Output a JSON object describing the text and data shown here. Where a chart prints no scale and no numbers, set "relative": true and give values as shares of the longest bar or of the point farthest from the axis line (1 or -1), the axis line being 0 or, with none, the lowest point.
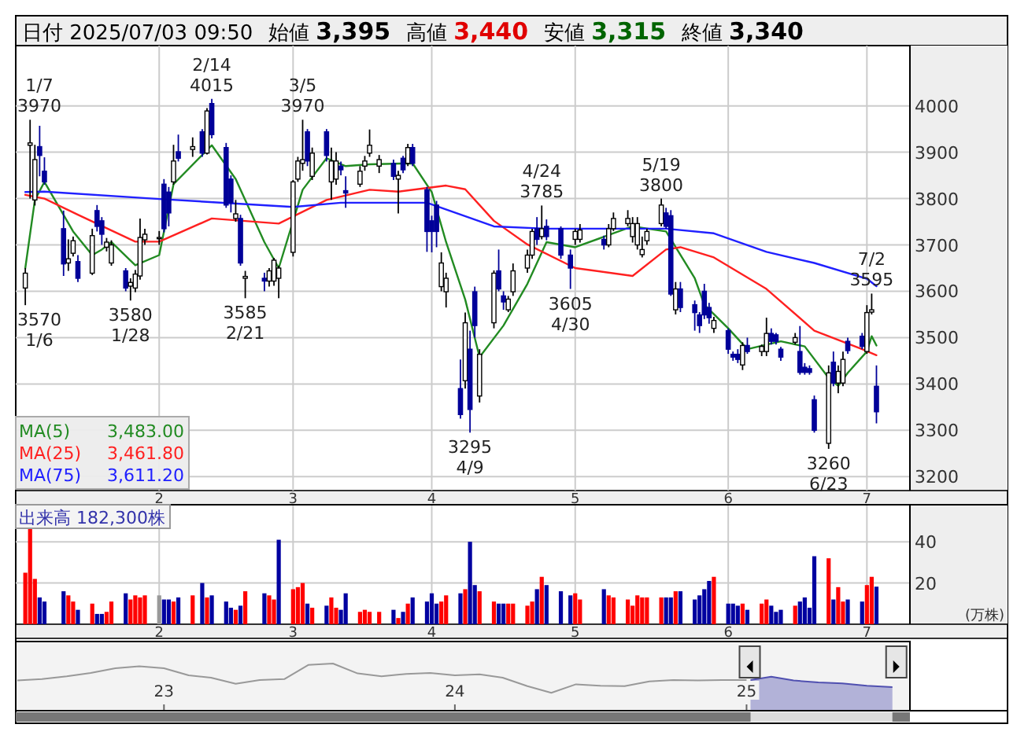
{
  "chart_data": [
    {
      "type": "other",
      "annotations": [
        "日付 2025/07/03 09:50",
        "始値 3,395",
        "高値 3,440",
        "安値 3,315",
        "終値 3,340"
      ]
    },
    {
      "type": "candlestick",
      "x": [
        "2025-01-06",
        "2025-01-07",
        "2025-01-08",
        "2025-01-09",
        "2025-01-10",
        "2025-01-14",
        "2025-01-15",
        "2025-01-16",
        "2025-01-17",
        "2025-01-20",
        "2025-01-21",
        "2025-01-22",
        "2025-01-23",
        "2025-01-24",
        "2025-01-27",
        "2025-01-28",
        "2025-01-29",
        "2025-01-30",
        "2025-01-31",
        "2025-02-03",
        "2025-02-04",
        "2025-02-05",
        "2025-02-06",
        "2025-02-07",
        "2025-02-10",
        "2025-02-12",
        "2025-02-13",
        "2025-02-14",
        "2025-02-17",
        "2025-02-18",
        "2025-02-19",
        "2025-02-20",
        "2025-02-21",
        "2025-02-25",
        "2025-02-26",
        "2025-02-27",
        "2025-02-28",
        "2025-03-03",
        "2025-03-04",
        "2025-03-05",
        "2025-03-06",
        "2025-03-07",
        "2025-03-10",
        "2025-03-11",
        "2025-03-12",
        "2025-03-13",
        "2025-03-14",
        "2025-03-17",
        "2025-03-18",
        "2025-03-19",
        "2025-03-21",
        "2025-03-24",
        "2025-03-25",
        "2025-03-26",
        "2025-03-27",
        "2025-03-28",
        "2025-03-31",
        "2025-04-01",
        "2025-04-02",
        "2025-04-03",
        "2025-04-04",
        "2025-04-07",
        "2025-04-08",
        "2025-04-09",
        "2025-04-10",
        "2025-04-11",
        "2025-04-14",
        "2025-04-15",
        "2025-04-16",
        "2025-04-17",
        "2025-04-18",
        "2025-04-21",
        "2025-04-22",
        "2025-04-23",
        "2025-04-24",
        "2025-04-25",
        "2025-04-28",
        "2025-04-30",
        "2025-05-01",
        "2025-05-02",
        "2025-05-07",
        "2025-05-08",
        "2025-05-09",
        "2025-05-12",
        "2025-05-13",
        "2025-05-14",
        "2025-05-15",
        "2025-05-16",
        "2025-05-19",
        "2025-05-20",
        "2025-05-21",
        "2025-05-22",
        "2025-05-23",
        "2025-05-26",
        "2025-05-27",
        "2025-05-28",
        "2025-05-29",
        "2025-05-30",
        "2025-06-02",
        "2025-06-03",
        "2025-06-04",
        "2025-06-05",
        "2025-06-06",
        "2025-06-09",
        "2025-06-10",
        "2025-06-11",
        "2025-06-12",
        "2025-06-13",
        "2025-06-16",
        "2025-06-17",
        "2025-06-18",
        "2025-06-19",
        "2025-06-20",
        "2025-06-23",
        "2025-06-24",
        "2025-06-25",
        "2025-06-26",
        "2025-06-27",
        "2025-06-30",
        "2025-07-01",
        "2025-07-02",
        "2025-07-03"
      ],
      "ohlc": [
        [
          3607,
          3650,
          3570,
          3639
        ],
        [
          3915,
          3970,
          3800,
          3920
        ],
        [
          3797,
          3916,
          3785,
          3884
        ],
        [
          3912,
          3957,
          3848,
          3893
        ],
        [
          3859,
          3889,
          3830,
          3836
        ],
        [
          3735,
          3774,
          3633,
          3659
        ],
        [
          3661,
          3712,
          3644,
          3670
        ],
        [
          3682,
          3718,
          3675,
          3709
        ],
        [
          3664,
          3678,
          3620,
          3628
        ],
        [
          3639,
          3735,
          3635,
          3720
        ],
        [
          3774,
          3786,
          3729,
          3740
        ],
        [
          3752,
          3760,
          3700,
          3723
        ],
        [
          3695,
          3715,
          3686,
          3706
        ],
        [
          3661,
          3710,
          3655,
          3700
        ],
        [
          3644,
          3650,
          3600,
          3607
        ],
        [
          3611,
          3628,
          3580,
          3619
        ],
        [
          3607,
          3646,
          3598,
          3637
        ],
        [
          3633,
          3757,
          3625,
          3716
        ],
        [
          3711,
          3735,
          3700,
          3723
        ],
        [
          3716,
          3730,
          3700,
          3716
        ],
        [
          3831,
          3842,
          3727,
          3735
        ],
        [
          3814,
          3825,
          3740,
          3769
        ],
        [
          3836,
          3916,
          3830,
          3881
        ],
        [
          3901,
          3938,
          3880,
          3887
        ],
        [
          3906,
          3932,
          3890,
          3912
        ],
        [
          3944,
          3950,
          3890,
          3898
        ],
        [
          3898,
          3995,
          3895,
          3989
        ],
        [
          4005,
          4015,
          3930,
          3938
        ],
        [
          3910,
          3920,
          3780,
          3786
        ],
        [
          3842,
          3850,
          3770,
          3791
        ],
        [
          3757,
          3797,
          3750,
          3767
        ],
        [
          3757,
          3765,
          3655,
          3661
        ],
        [
          3628,
          3644,
          3585,
          3632
        ],
        [
          3628,
          3640,
          3600,
          3622
        ],
        [
          3622,
          3650,
          3610,
          3644
        ],
        [
          3622,
          3672,
          3612,
          3667
        ],
        [
          3628,
          3655,
          3585,
          3650
        ],
        [
          3684,
          3840,
          3675,
          3836
        ],
        [
          3842,
          3890,
          3836,
          3881
        ],
        [
          3876,
          3970,
          3860,
          3884
        ],
        [
          3944,
          3950,
          3870,
          3881
        ],
        [
          3848,
          3910,
          3840,
          3898
        ],
        [
          3944,
          3950,
          3880,
          3893
        ],
        [
          3836,
          3910,
          3797,
          3881
        ],
        [
          3842,
          3900,
          3830,
          3881
        ],
        [
          3870,
          3880,
          3850,
          3862
        ],
        [
          3817,
          3848,
          3780,
          3812
        ],
        [
          3831,
          3870,
          3825,
          3859
        ],
        [
          3870,
          3892,
          3860,
          3881
        ],
        [
          3898,
          3949,
          3890,
          3915
        ],
        [
          3870,
          3894,
          3855,
          3884
        ],
        [
          3876,
          3884,
          3840,
          3848
        ],
        [
          3842,
          3860,
          3768,
          3850
        ],
        [
          3887,
          3892,
          3855,
          3862
        ],
        [
          3876,
          3918,
          3870,
          3910
        ],
        [
          3910,
          3918,
          3870,
          3876
        ],
        [
          3819,
          3825,
          3685,
          3729
        ],
        [
          3752,
          3763,
          3684,
          3729
        ],
        [
          3786,
          3795,
          3695,
          3729
        ],
        [
          3610,
          3684,
          3600,
          3661
        ],
        [
          3599,
          3640,
          3565,
          3628
        ],
        [
          3390,
          3453,
          3325,
          3334
        ],
        [
          3407,
          3554,
          3390,
          3532
        ],
        [
          3475,
          3515,
          3295,
          3345
        ],
        [
          3599,
          3610,
          3500,
          3526
        ],
        [
          3374,
          3475,
          3360,
          3464
        ],
        [
          3532,
          3645,
          3520,
          3639
        ],
        [
          3644,
          3690,
          3600,
          3605
        ],
        [
          3590,
          3600,
          3560,
          3577
        ],
        [
          3560,
          3590,
          3555,
          3583
        ],
        [
          3599,
          3660,
          3590,
          3644
        ],
        [
          3650,
          3690,
          3640,
          3678
        ],
        [
          3678,
          3735,
          3670,
          3729
        ],
        [
          3735,
          3760,
          3700,
          3712
        ],
        [
          3718,
          3785,
          3712,
          3735
        ],
        [
          3740,
          3755,
          3710,
          3718
        ],
        [
          3735,
          3740,
          3670,
          3678
        ],
        [
          3678,
          3690,
          3605,
          3650
        ],
        [
          3712,
          3735,
          3700,
          3729
        ],
        [
          3712,
          3745,
          3705,
          3732
        ],
        [
          3712,
          3720,
          3690,
          3700
        ],
        [
          3700,
          3745,
          3695,
          3735
        ],
        [
          3735,
          3770,
          3730,
          3757
        ],
        [
          3746,
          3775,
          3740,
          3757
        ],
        [
          3718,
          3760,
          3705,
          3746
        ],
        [
          3700,
          3760,
          3690,
          3746
        ],
        [
          3679,
          3718,
          3673,
          3690
        ],
        [
          3709,
          3735,
          3700,
          3729
        ],
        [
          3746,
          3800,
          3740,
          3786
        ],
        [
          3769,
          3780,
          3735,
          3740
        ],
        [
          3763,
          3775,
          3590,
          3594
        ],
        [
          3560,
          3620,
          3550,
          3605
        ],
        [
          3605,
          3620,
          3555,
          3565
        ],
        [
          3571,
          3580,
          3515,
          3554
        ],
        [
          3549,
          3555,
          3510,
          3526
        ],
        [
          3600,
          3616,
          3540,
          3549
        ],
        [
          3565,
          3575,
          3530,
          3543
        ],
        [
          3520,
          3545,
          3510,
          3537
        ],
        [
          3515,
          3520,
          3465,
          3475
        ],
        [
          3464,
          3470,
          3450,
          3458
        ],
        [
          3464,
          3475,
          3445,
          3453
        ],
        [
          3441,
          3490,
          3430,
          3483
        ],
        [
          3483,
          3500,
          3465,
          3470
        ],
        [
          3470,
          3485,
          3460,
          3481
        ],
        [
          3470,
          3543,
          3460,
          3509
        ],
        [
          3509,
          3520,
          3485,
          3492
        ],
        [
          3506,
          3510,
          3485,
          3492
        ],
        [
          3475,
          3480,
          3450,
          3458
        ],
        [
          3490,
          3510,
          3485,
          3500
        ],
        [
          3470,
          3525,
          3420,
          3425
        ],
        [
          3436,
          3445,
          3420,
          3425
        ],
        [
          3433,
          3440,
          3420,
          3425
        ],
        [
          3366,
          3375,
          3295,
          3300
        ],
        [
          3272,
          3440,
          3260,
          3424
        ],
        [
          3447,
          3470,
          3395,
          3402
        ],
        [
          3402,
          3440,
          3380,
          3427
        ],
        [
          3402,
          3470,
          3395,
          3453
        ],
        [
          3492,
          3500,
          3465,
          3472
        ],
        [
          3503,
          3510,
          3475,
          3481
        ],
        [
          3470,
          3570,
          3465,
          3554
        ],
        [
          3555,
          3595,
          3550,
          3560
        ],
        [
          3395,
          3440,
          3315,
          3340
        ]
      ],
      "series": [
        {
          "type": "line",
          "name": "MA(5)  3,483.00",
          "color": "#228b22",
          "x": [
            "2025-01-06",
            "2025-01-08",
            "2025-01-10",
            "2025-01-16",
            "2025-01-20",
            "2025-01-22",
            "2025-01-24",
            "2025-01-29",
            "2025-02-03",
            "2025-02-06",
            "2025-02-14",
            "2025-02-19",
            "2025-02-25",
            "2025-02-28",
            "2025-03-05",
            "2025-03-10",
            "2025-03-14",
            "2025-03-19",
            "2025-03-28",
            "2025-04-01",
            "2025-04-04",
            "2025-04-08",
            "2025-04-11",
            "2025-04-16",
            "2025-04-21",
            "2025-04-25",
            "2025-05-01",
            "2025-05-13",
            "2025-05-20",
            "2025-05-26",
            "2025-05-28",
            "2025-06-02",
            "2025-06-06",
            "2025-06-13",
            "2025-06-18",
            "2025-06-23",
            "2025-06-25",
            "2025-06-27",
            "2025-07-01",
            "2025-07-02",
            "2025-07-03"
          ],
          "values": [
            3650,
            3797,
            3836,
            3729,
            3678,
            3690,
            3706,
            3656,
            3678,
            3831,
            3915,
            3842,
            3706,
            3650,
            3819,
            3887,
            3870,
            3874,
            3876,
            3814,
            3706,
            3582,
            3458,
            3526,
            3616,
            3706,
            3695,
            3740,
            3729,
            3628,
            3571,
            3520,
            3475,
            3492,
            3481,
            3413,
            3396,
            3424,
            3470,
            3503,
            3483
          ]
        },
        {
          "type": "line",
          "name": "MA(25)  3,461.80",
          "color": "#ff2020",
          "x": [
            "2025-01-06",
            "2025-01-10",
            "2025-01-17",
            "2025-01-29",
            "2025-02-03",
            "2025-02-14",
            "2025-02-28",
            "2025-03-10",
            "2025-03-19",
            "2025-03-25",
            "2025-04-04",
            "2025-04-08",
            "2025-04-14",
            "2025-04-21",
            "2025-05-01",
            "2025-05-13",
            "2025-05-20",
            "2025-05-23",
            "2025-05-30",
            "2025-06-10",
            "2025-06-20",
            "2025-06-30",
            "2025-07-03"
          ],
          "values": [
            3808,
            3800,
            3765,
            3707,
            3707,
            3757,
            3746,
            3797,
            3819,
            3815,
            3828,
            3820,
            3752,
            3701,
            3650,
            3633,
            3690,
            3695,
            3673,
            3605,
            3515,
            3475,
            3462
          ]
        },
        {
          "type": "line",
          "name": "MA(75)  3,611.20",
          "color": "#2020ff",
          "x": [
            "2025-01-06",
            "2025-01-10",
            "2025-02-03",
            "2025-03-03",
            "2025-03-13",
            "2025-03-31",
            "2025-04-14",
            "2025-04-25",
            "2025-05-09",
            "2025-05-20",
            "2025-05-30",
            "2025-06-10",
            "2025-06-20",
            "2025-07-01",
            "2025-07-03"
          ],
          "values": [
            3814,
            3815,
            3799,
            3782,
            3791,
            3791,
            3740,
            3735,
            3735,
            3735,
            3725,
            3685,
            3661,
            3627,
            3611
          ]
        }
      ],
      "ylim": [
        3170,
        4130
      ],
      "yticks": [
        3200,
        3300,
        3400,
        3500,
        3600,
        3700,
        3800,
        3900,
        4000
      ],
      "xlim": [
        "2025-01-04",
        "2025-07-10"
      ],
      "xticks": [
        {
          "value": "2025-02-03",
          "label": "2"
        },
        {
          "value": "2025-03-03",
          "label": "3"
        },
        {
          "value": "2025-04-01",
          "label": "4"
        },
        {
          "value": "2025-05-01",
          "label": "5"
        },
        {
          "value": "2025-06-02",
          "label": "6"
        },
        {
          "value": "2025-07-01",
          "label": "7"
        }
      ],
      "grid": true,
      "annotations": [
        {
          "text": "1/7\n3970",
          "x": "2025-01-07",
          "y": 3970
        },
        {
          "text": "3570\n1/6",
          "x": "2025-01-06",
          "y": 3570
        },
        {
          "text": "3580\n1/28",
          "x": "2025-01-28",
          "y": 3580
        },
        {
          "text": "2/14\n4015",
          "x": "2025-02-14",
          "y": 4015
        },
        {
          "text": "3585\n2/21",
          "x": "2025-02-21",
          "y": 3585
        },
        {
          "text": "3/5\n3970",
          "x": "2025-03-05",
          "y": 3970
        },
        {
          "text": "3295\n4/9",
          "x": "2025-04-09",
          "y": 3295
        },
        {
          "text": "4/24\n3785",
          "x": "2025-04-24",
          "y": 3785
        },
        {
          "text": "3605\n4/30",
          "x": "2025-04-30",
          "y": 3605
        },
        {
          "text": "5/19\n3800",
          "x": "2025-05-19",
          "y": 3800
        },
        {
          "text": "3260\n6/23",
          "x": "2025-06-23",
          "y": 3260
        },
        {
          "text": "7/2\n3595",
          "x": "2025-07-02",
          "y": 3595
        }
      ]
    },
    {
      "type": "bar",
      "title": "出来高  182,300株",
      "ylabel": "(万株)",
      "x": [
        "2025-01-06",
        "2025-01-07",
        "2025-01-08",
        "2025-01-09",
        "2025-01-10",
        "2025-01-14",
        "2025-01-15",
        "2025-01-16",
        "2025-01-17",
        "2025-01-20",
        "2025-01-21",
        "2025-01-22",
        "2025-01-23",
        "2025-01-24",
        "2025-01-27",
        "2025-01-28",
        "2025-01-29",
        "2025-01-30",
        "2025-01-31",
        "2025-02-03",
        "2025-02-04",
        "2025-02-05",
        "2025-02-06",
        "2025-02-07",
        "2025-02-10",
        "2025-02-12",
        "2025-02-13",
        "2025-02-14",
        "2025-02-17",
        "2025-02-18",
        "2025-02-19",
        "2025-02-20",
        "2025-02-21",
        "2025-02-25",
        "2025-02-26",
        "2025-02-27",
        "2025-02-28",
        "2025-03-03",
        "2025-03-04",
        "2025-03-05",
        "2025-03-06",
        "2025-03-07",
        "2025-03-10",
        "2025-03-11",
        "2025-03-12",
        "2025-03-13",
        "2025-03-14",
        "2025-03-17",
        "2025-03-18",
        "2025-03-19",
        "2025-03-21",
        "2025-03-24",
        "2025-03-25",
        "2025-03-26",
        "2025-03-27",
        "2025-03-28",
        "2025-03-31",
        "2025-04-01",
        "2025-04-02",
        "2025-04-03",
        "2025-04-04",
        "2025-04-07",
        "2025-04-08",
        "2025-04-09",
        "2025-04-10",
        "2025-04-11",
        "2025-04-14",
        "2025-04-15",
        "2025-04-16",
        "2025-04-17",
        "2025-04-18",
        "2025-04-21",
        "2025-04-22",
        "2025-04-23",
        "2025-04-24",
        "2025-04-25",
        "2025-04-28",
        "2025-04-30",
        "2025-05-01",
        "2025-05-02",
        "2025-05-07",
        "2025-05-08",
        "2025-05-09",
        "2025-05-12",
        "2025-05-13",
        "2025-05-14",
        "2025-05-15",
        "2025-05-16",
        "2025-05-19",
        "2025-05-20",
        "2025-05-21",
        "2025-05-22",
        "2025-05-23",
        "2025-05-26",
        "2025-05-27",
        "2025-05-28",
        "2025-05-29",
        "2025-05-30",
        "2025-06-02",
        "2025-06-03",
        "2025-06-04",
        "2025-06-05",
        "2025-06-06",
        "2025-06-09",
        "2025-06-10",
        "2025-06-11",
        "2025-06-12",
        "2025-06-13",
        "2025-06-16",
        "2025-06-17",
        "2025-06-18",
        "2025-06-19",
        "2025-06-20",
        "2025-06-23",
        "2025-06-24",
        "2025-06-25",
        "2025-06-26",
        "2025-06-27",
        "2025-06-30",
        "2025-07-01",
        "2025-07-02",
        "2025-07-03"
      ],
      "values": [
        25,
        47,
        22,
        13,
        11,
        16,
        14,
        11,
        7,
        10,
        5,
        5,
        6,
        11,
        15,
        12,
        14,
        13,
        14,
        14,
        12,
        12,
        11,
        13,
        14,
        20,
        13,
        14,
        11,
        8,
        7,
        9,
        16,
        15,
        14,
        12,
        41,
        17,
        18,
        20,
        10,
        8,
        9,
        13,
        8,
        7,
        15,
        6,
        7,
        6,
        6,
        7,
        3,
        6,
        10,
        13,
        11,
        15,
        10,
        11,
        14,
        15,
        17,
        40,
        19,
        16,
        11,
        10,
        10,
        10,
        10,
        9,
        11,
        17,
        23,
        19,
        16,
        14,
        15,
        12,
        17,
        14,
        13,
        12,
        9,
        14,
        13,
        13,
        13,
        13,
        13,
        16,
        16,
        12,
        14,
        17,
        21,
        23,
        10,
        10,
        9,
        10,
        7,
        10,
        12,
        9,
        6,
        7,
        9,
        11,
        13,
        8,
        33,
        32,
        12,
        18,
        11,
        12,
        11,
        19,
        23,
        18.23
      ],
      "colors": [
        "#ff0000",
        "#ff0000",
        "#ff0000",
        "#0000a0",
        "#0000a0",
        "#0000a0",
        "#ff0000",
        "#ff0000",
        "#0000a0",
        "#ff0000",
        "#0000a0",
        "#0000a0",
        "#ff0000",
        "#ff0000",
        "#0000a0",
        "#ff0000",
        "#ff0000",
        "#ff0000",
        "#ff0000",
        "#999999",
        "#0000a0",
        "#0000a0",
        "#ff0000",
        "#0000a0",
        "#ff0000",
        "#0000a0",
        "#ff0000",
        "#0000a0",
        "#0000a0",
        "#0000a0",
        "#ff0000",
        "#0000a0",
        "#ff0000",
        "#0000a0",
        "#ff0000",
        "#ff0000",
        "#0000a0",
        "#ff0000",
        "#ff0000",
        "#ff0000",
        "#0000a0",
        "#ff0000",
        "#0000a0",
        "#ff0000",
        "#ff0000",
        "#0000a0",
        "#0000a0",
        "#ff0000",
        "#ff0000",
        "#ff0000",
        "#ff0000",
        "#0000a0",
        "#ff0000",
        "#0000a0",
        "#ff0000",
        "#0000a0",
        "#0000a0",
        "#0000a0",
        "#0000a0",
        "#ff0000",
        "#ff0000",
        "#0000a0",
        "#ff0000",
        "#0000a0",
        "#0000a0",
        "#ff0000",
        "#ff0000",
        "#0000a0",
        "#0000a0",
        "#ff0000",
        "#ff0000",
        "#ff0000",
        "#ff0000",
        "#0000a0",
        "#ff0000",
        "#0000a0",
        "#0000a0",
        "#0000a0",
        "#ff0000",
        "#ff0000",
        "#0000a0",
        "#ff0000",
        "#ff0000",
        "#ff0000",
        "#ff0000",
        "#ff0000",
        "#ff0000",
        "#ff0000",
        "#ff0000",
        "#0000a0",
        "#0000a0",
        "#ff0000",
        "#0000a0",
        "#0000a0",
        "#0000a0",
        "#0000a0",
        "#0000a0",
        "#ff0000",
        "#0000a0",
        "#0000a0",
        "#0000a0",
        "#ff0000",
        "#0000a0",
        "#ff0000",
        "#ff0000",
        "#0000a0",
        "#0000a0",
        "#0000a0",
        "#ff0000",
        "#0000a0",
        "#0000a0",
        "#0000a0",
        "#0000a0",
        "#ff0000",
        "#0000a0",
        "#ff0000",
        "#ff0000",
        "#0000a0",
        "#0000a0",
        "#ff0000",
        "#ff0000",
        "#0000a0"
      ],
      "ylim": [
        0,
        58
      ],
      "yticks": [
        20,
        40
      ],
      "xlim": [
        "2025-01-04",
        "2025-07-10"
      ],
      "xticks": [
        {
          "value": "2025-02-03",
          "label": "2"
        },
        {
          "value": "2025-03-03",
          "label": "3"
        },
        {
          "value": "2025-04-01",
          "label": "4"
        },
        {
          "value": "2025-05-01",
          "label": "5"
        },
        {
          "value": "2025-06-02",
          "label": "6"
        },
        {
          "value": "2025-07-01",
          "label": "7"
        }
      ],
      "grid": true
    },
    {
      "type": "line",
      "relative": true,
      "series": [
        {
          "type": "line",
          "color": "#999999",
          "x": [
            "2022-07",
            "2022-08",
            "2022-09",
            "2022-10",
            "2022-11",
            "2022-12",
            "2023-01",
            "2023-02",
            "2023-03",
            "2023-04",
            "2023-05",
            "2023-06",
            "2023-07",
            "2023-08",
            "2023-09",
            "2023-10",
            "2023-11",
            "2023-12",
            "2024-01",
            "2024-02",
            "2024-03",
            "2024-04",
            "2024-05",
            "2024-06",
            "2024-07",
            "2024-08",
            "2024-09",
            "2024-10",
            "2024-11",
            "2024-12",
            "2025-01"
          ],
          "values": [
            0.64,
            0.67,
            0.73,
            0.8,
            0.9,
            0.94,
            0.9,
            0.75,
            0.7,
            0.57,
            0.65,
            0.67,
            0.97,
            1,
            0.79,
            0.73,
            0.78,
            0.8,
            0.75,
            0.77,
            0.7,
            0.52,
            0.38,
            0.56,
            0.53,
            0.52,
            0.62,
            0.65,
            0.64,
            0.65,
            0.65
          ]
        },
        {
          "type": "area",
          "color": "#5050b0",
          "x": [
            "2025-01-06",
            "2025-02",
            "2025-03",
            "2025-04",
            "2025-05",
            "2025-06",
            "2025-07-03"
          ],
          "values": [
            0.65,
            0.72,
            0.64,
            0.6,
            0.58,
            0.53,
            0.5
          ]
        }
      ],
      "xlim": [
        "2022-06-29",
        "2025-07-25"
      ],
      "xticks": [
        {
          "value": "2023-01-01",
          "label": "23"
        },
        {
          "value": "2024-01-01",
          "label": "24"
        },
        {
          "value": "2025-01-01",
          "label": "25"
        }
      ]
    }
  ]
}
